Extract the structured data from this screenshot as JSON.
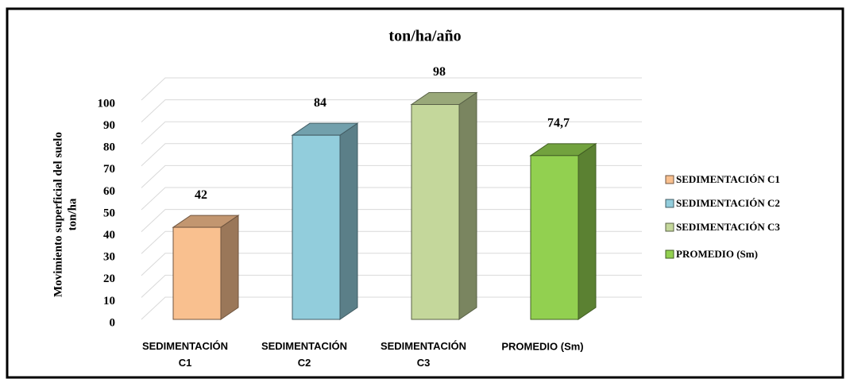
{
  "chart_data": {
    "type": "bar3d",
    "title": "ton/ha/año",
    "ylabel": [
      "Movimiento superficial  del suelo",
      "ton/ha"
    ],
    "categories": [
      "SEDIMENTACIÓN C1",
      "SEDIMENTACIÓN C2",
      "SEDIMENTACIÓN C3",
      "PROMEDIO (Sm)"
    ],
    "values": [
      42,
      84,
      98,
      74.7
    ],
    "value_labels": [
      "42",
      "84",
      "98",
      "74,7"
    ],
    "colors": [
      "#f9c08f",
      "#92cddc",
      "#c4d79b",
      "#92d050"
    ],
    "ylim": [
      0,
      100
    ],
    "yticks": [
      0,
      10,
      20,
      30,
      40,
      50,
      60,
      70,
      80,
      90,
      100
    ],
    "grid": true,
    "legend": "right"
  }
}
